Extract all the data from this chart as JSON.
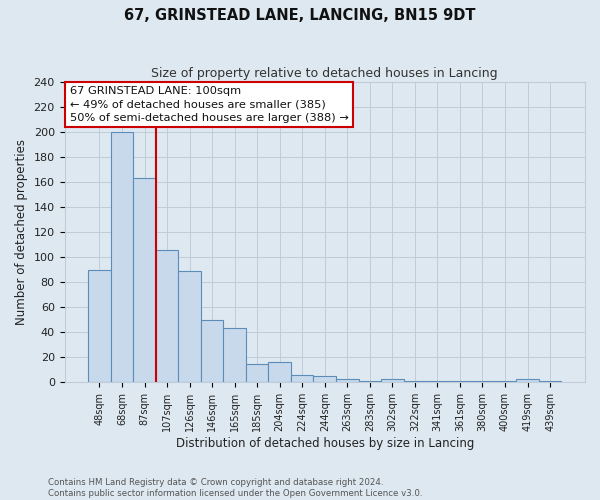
{
  "title": "67, GRINSTEAD LANE, LANCING, BN15 9DT",
  "subtitle": "Size of property relative to detached houses in Lancing",
  "xlabel": "Distribution of detached houses by size in Lancing",
  "ylabel": "Number of detached properties",
  "bar_labels": [
    "48sqm",
    "68sqm",
    "87sqm",
    "107sqm",
    "126sqm",
    "146sqm",
    "165sqm",
    "185sqm",
    "204sqm",
    "224sqm",
    "244sqm",
    "263sqm",
    "283sqm",
    "302sqm",
    "322sqm",
    "341sqm",
    "361sqm",
    "380sqm",
    "400sqm",
    "419sqm",
    "439sqm"
  ],
  "bar_values": [
    90,
    200,
    163,
    106,
    89,
    50,
    43,
    15,
    16,
    6,
    5,
    3,
    1,
    3,
    1,
    1,
    1,
    1,
    1,
    3,
    1
  ],
  "bar_color": "#c9d9ec",
  "bar_edge_color": "#5b8db8",
  "vline_x": 2.5,
  "vline_color": "#cc0000",
  "annotation_lines": [
    "67 GRINSTEAD LANE: 100sqm",
    "← 49% of detached houses are smaller (385)",
    "50% of semi-detached houses are larger (388) →"
  ],
  "annotation_box_color": "#ffffff",
  "annotation_box_edge": "#cc0000",
  "ylim": [
    0,
    240
  ],
  "yticks": [
    0,
    20,
    40,
    60,
    80,
    100,
    120,
    140,
    160,
    180,
    200,
    220,
    240
  ],
  "grid_color": "#c0ccd8",
  "bg_color": "#dde8f0",
  "footer_line1": "Contains HM Land Registry data © Crown copyright and database right 2024.",
  "footer_line2": "Contains public sector information licensed under the Open Government Licence v3.0."
}
